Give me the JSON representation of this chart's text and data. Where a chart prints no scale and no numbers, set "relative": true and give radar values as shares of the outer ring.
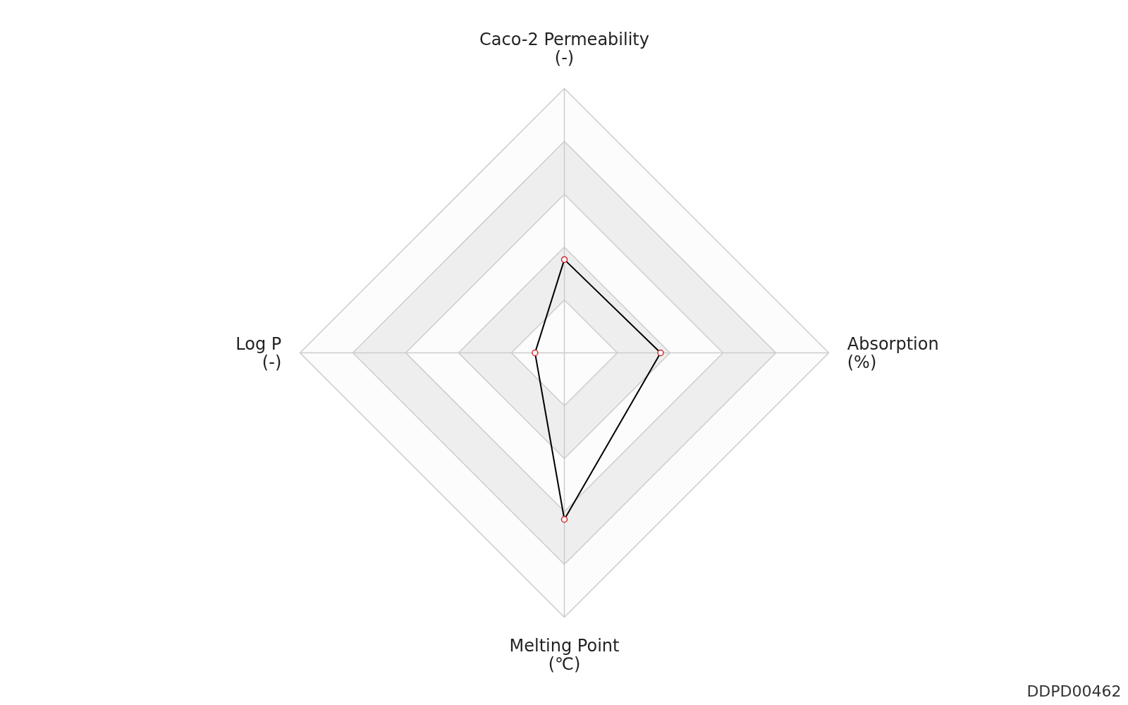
{
  "chart_data": {
    "type": "radar",
    "relative": true,
    "categories": [
      "Caco-2 Permeability\n(-)",
      "Absorption\n(%)",
      "Melting Point\n(℃)",
      "Log P\n(-)"
    ],
    "series": [
      {
        "color": "#000000",
        "values": [
          0.353,
          0.364,
          0.63,
          0.111
        ]
      }
    ],
    "marker": "circle",
    "line_style": "solid",
    "annotations": [
      "DDPD00462"
    ]
  }
}
